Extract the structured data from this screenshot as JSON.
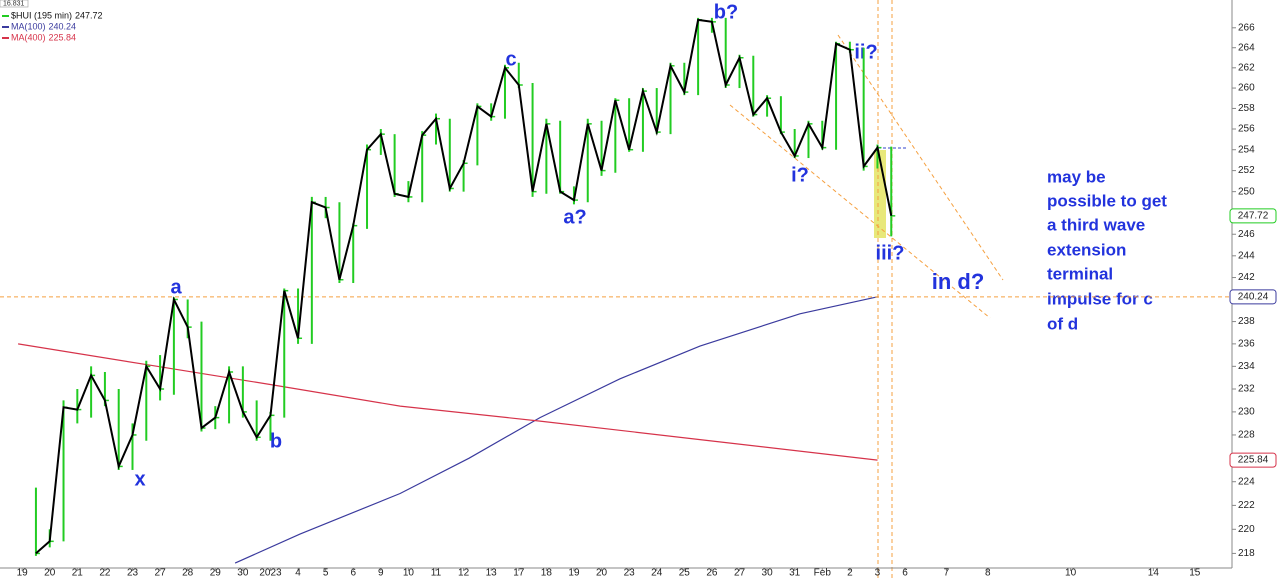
{
  "chart_data": {
    "type": "ohlc",
    "corner_label": "16.831",
    "log_scale": true,
    "xlim": [
      -0.15,
      43.85
    ],
    "ylim": [
      216.8,
      268
    ],
    "xticks": [
      {
        "value": 0,
        "label": "19"
      },
      {
        "value": 1,
        "label": "20"
      },
      {
        "value": 2,
        "label": "21"
      },
      {
        "value": 3,
        "label": "22"
      },
      {
        "value": 4,
        "label": "23"
      },
      {
        "value": 5,
        "label": "27"
      },
      {
        "value": 6,
        "label": "28"
      },
      {
        "value": 7,
        "label": "29"
      },
      {
        "value": 8,
        "label": "30"
      },
      {
        "value": 9,
        "label": "2023"
      },
      {
        "value": 10,
        "label": "4"
      },
      {
        "value": 11,
        "label": "5"
      },
      {
        "value": 12,
        "label": "6"
      },
      {
        "value": 13,
        "label": "9"
      },
      {
        "value": 14,
        "label": "10"
      },
      {
        "value": 15,
        "label": "11"
      },
      {
        "value": 16,
        "label": "12"
      },
      {
        "value": 17,
        "label": "13"
      },
      {
        "value": 18,
        "label": "17"
      },
      {
        "value": 19,
        "label": "18"
      },
      {
        "value": 20,
        "label": "19"
      },
      {
        "value": 21,
        "label": "20"
      },
      {
        "value": 22,
        "label": "23"
      },
      {
        "value": 23,
        "label": "24"
      },
      {
        "value": 24,
        "label": "25"
      },
      {
        "value": 25,
        "label": "26"
      },
      {
        "value": 26,
        "label": "27"
      },
      {
        "value": 27,
        "label": "30"
      },
      {
        "value": 28,
        "label": "31"
      },
      {
        "value": 29,
        "label": "Feb"
      },
      {
        "value": 30,
        "label": "2"
      },
      {
        "value": 31,
        "label": "3"
      },
      {
        "value": 32,
        "label": "6"
      },
      {
        "value": 33.5,
        "label": "7"
      },
      {
        "value": 35,
        "label": "8"
      },
      {
        "value": 38,
        "label": "10"
      },
      {
        "value": 41,
        "label": "14"
      },
      {
        "value": 42.5,
        "label": "15"
      }
    ],
    "yticks": [
      218,
      220,
      222,
      224,
      226,
      228,
      230,
      232,
      234,
      236,
      238,
      242,
      244,
      246,
      250,
      252,
      254,
      256,
      258,
      260,
      262,
      264,
      266
    ],
    "series": [
      {
        "name": "$HUI (195 min)",
        "color": "#22cc22",
        "line_color": "#000000",
        "x": [
          0.5,
          1,
          1.5,
          2,
          2.5,
          3,
          3.5,
          4,
          4.5,
          5,
          5.5,
          6,
          6.5,
          7,
          7.5,
          8,
          8.5,
          9,
          9.5,
          10,
          10.5,
          11,
          11.5,
          12,
          12.5,
          13,
          13.5,
          14,
          14.5,
          15,
          15.5,
          16,
          16.5,
          17,
          17.5,
          18,
          18.5,
          19,
          19.5,
          20,
          20.5,
          21,
          21.5,
          22,
          22.5,
          23,
          23.5,
          24,
          24.5,
          25,
          25.5,
          26,
          26.5,
          27,
          27.5,
          28,
          28.5,
          29,
          29.5,
          30,
          30.5,
          31,
          31.5
        ],
        "values": [
          218.0,
          219.0,
          230.4,
          230.2,
          233.2,
          231.0,
          225.3,
          228.0,
          234.0,
          232.0,
          240.0,
          237.5,
          228.6,
          229.5,
          233.5,
          230.0,
          227.8,
          229.7,
          240.8,
          236.5,
          249.0,
          248.5,
          241.8,
          246.8,
          254.0,
          255.5,
          249.8,
          249.5,
          255.4,
          257.0,
          250.3,
          252.7,
          258.2,
          257.2,
          262.0,
          260.3,
          250.0,
          256.5,
          250.0,
          249.2,
          256.5,
          252.0,
          258.8,
          254.0,
          259.7,
          255.7,
          262.2,
          259.6,
          266.8,
          266.6,
          260.3,
          263.0,
          257.4,
          259.0,
          255.7,
          253.4,
          256.5,
          254.2,
          264.4,
          263.8,
          252.4,
          254.2,
          247.72
        ],
        "high": [
          223.5,
          220,
          231,
          232,
          234,
          233.5,
          232,
          229,
          234.5,
          235,
          240.2,
          240,
          238,
          230.5,
          234,
          234,
          231,
          230,
          241,
          241,
          249.5,
          249.5,
          249,
          247,
          254.5,
          256,
          255.5,
          251,
          255.8,
          257.5,
          257,
          253,
          258.5,
          258.5,
          262.3,
          262.5,
          260.5,
          257,
          256.8,
          250.5,
          257,
          256.8,
          259,
          259,
          260,
          260,
          262.5,
          262.5,
          267,
          267,
          267,
          263.3,
          263.2,
          259.3,
          259.2,
          256,
          256.8,
          256.8,
          264.6,
          264.6,
          264,
          254.5,
          254.3
        ],
        "low": [
          217.8,
          218.5,
          219,
          229,
          229.5,
          230.5,
          225,
          225,
          227.5,
          231,
          231.5,
          236.5,
          228.3,
          228.5,
          229,
          229.5,
          227.5,
          227.5,
          229.5,
          236,
          236,
          247.5,
          241.5,
          241.5,
          246.5,
          253.5,
          249.5,
          249,
          249,
          254.5,
          250,
          250,
          252.5,
          256.8,
          257,
          260,
          249.5,
          249.8,
          249.8,
          248.8,
          249,
          251.5,
          251.8,
          253.8,
          253.8,
          255.5,
          255.5,
          259.3,
          259.3,
          265.5,
          260,
          260,
          257.2,
          257.2,
          255.5,
          253.2,
          253.2,
          254,
          254,
          263.5,
          252,
          252.2,
          245.8
        ]
      },
      {
        "name": "MA(100)",
        "color": "#3b3b9e",
        "x": [
          7.72,
          10.07,
          13.7,
          16.2,
          18.77,
          21.67,
          24.57,
          28.19,
          31.0
        ],
        "values": [
          217.2,
          219.6,
          223.0,
          226.0,
          229.5,
          232.9,
          235.8,
          238.7,
          240.24
        ]
      },
      {
        "name": "MA(400)",
        "color": "#d6334a",
        "x": [
          -0.145,
          4.64,
          8.99,
          13.7,
          18.77,
          24.57,
          31.0
        ],
        "values": [
          236.0,
          234.1,
          232.4,
          230.5,
          229.2,
          227.6,
          225.84
        ]
      }
    ],
    "annotations": [
      "x",
      "a",
      "b",
      "c",
      "a?",
      "b?",
      "i?",
      "ii?",
      "iii?",
      "in d?"
    ],
    "note": [
      "may be",
      "possible to get",
      "a third wave",
      "extension",
      "terminal",
      "impulse for c",
      "of d"
    ]
  }
}
